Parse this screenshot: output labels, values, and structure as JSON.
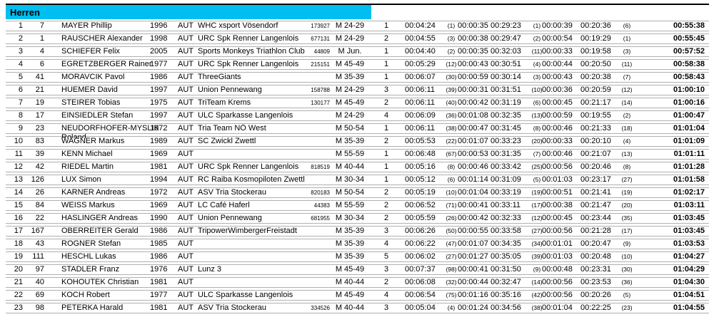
{
  "header": {
    "title": "Herren",
    "accent_color": "#00bff0"
  },
  "table": {
    "rows": [
      {
        "rank": "1",
        "bib": "7",
        "name": "MAYER Phillip",
        "year": "1996",
        "nat": "AUT",
        "club": "WHC xsport Vösendorf",
        "license": "173927",
        "category": "M 24-29",
        "cat_rank": "1",
        "swim": "00:04:24",
        "swim_rank": "(1)",
        "t1": "00:00:35",
        "bike": "00:29:23",
        "bike_rank": "(1)",
        "t2": "00:00:39",
        "run": "00:20:36",
        "run_rank": "(6)",
        "total": "00:55:38"
      },
      {
        "rank": "2",
        "bib": "1",
        "name": "RAUSCHER Alexander",
        "year": "1998",
        "nat": "AUT",
        "club": "URC Spk Renner Langenlois",
        "license": "677131",
        "category": "M 24-29",
        "cat_rank": "2",
        "swim": "00:04:55",
        "swim_rank": "(3)",
        "t1": "00:00:38",
        "bike": "00:29:47",
        "bike_rank": "(2)",
        "t2": "00:00:54",
        "run": "00:19:29",
        "run_rank": "(1)",
        "total": "00:55:45"
      },
      {
        "rank": "3",
        "bib": "4",
        "name": "SCHIEFER Felix",
        "year": "2005",
        "nat": "AUT",
        "club": "Sports Monkeys Triathlon Club",
        "license": "44809",
        "category": "M Jun.",
        "cat_rank": "1",
        "swim": "00:04:40",
        "swim_rank": "(2)",
        "t1": "00:00:35",
        "bike": "00:32:03",
        "bike_rank": "(11)",
        "t2": "00:00:33",
        "run": "00:19:58",
        "run_rank": "(3)",
        "total": "00:57:52"
      },
      {
        "rank": "4",
        "bib": "6",
        "name": "EGRETZBERGER Rainer",
        "year": "1977",
        "nat": "AUT",
        "club": "URC Spk Renner Langenlois",
        "license": "215151",
        "category": "M 45-49",
        "cat_rank": "1",
        "swim": "00:05:29",
        "swim_rank": "(12)",
        "t1": "00:00:43",
        "bike": "00:30:51",
        "bike_rank": "(4)",
        "t2": "00:00:44",
        "run": "00:20:50",
        "run_rank": "(11)",
        "total": "00:58:38"
      },
      {
        "rank": "5",
        "bib": "41",
        "name": "MORAVCIK Pavol",
        "year": "1986",
        "nat": "AUT",
        "club": "ThreeGiants",
        "license": "",
        "category": "M 35-39",
        "cat_rank": "1",
        "swim": "00:06:07",
        "swim_rank": "(30)",
        "t1": "00:00:59",
        "bike": "00:30:14",
        "bike_rank": "(3)",
        "t2": "00:00:43",
        "run": "00:20:38",
        "run_rank": "(7)",
        "total": "00:58:43"
      },
      {
        "rank": "6",
        "bib": "21",
        "name": "HUEMER David",
        "year": "1997",
        "nat": "AUT",
        "club": "Union Pennewang",
        "license": "158788",
        "category": "M 24-29",
        "cat_rank": "3",
        "swim": "00:06:11",
        "swim_rank": "(39)",
        "t1": "00:00:31",
        "bike": "00:31:51",
        "bike_rank": "(10)",
        "t2": "00:00:36",
        "run": "00:20:59",
        "run_rank": "(12)",
        "total": "01:00:10"
      },
      {
        "rank": "7",
        "bib": "19",
        "name": "STEIRER Tobias",
        "year": "1975",
        "nat": "AUT",
        "club": "TriTeam Krems",
        "license": "130177",
        "category": "M 45-49",
        "cat_rank": "2",
        "swim": "00:06:11",
        "swim_rank": "(40)",
        "t1": "00:00:42",
        "bike": "00:31:19",
        "bike_rank": "(6)",
        "t2": "00:00:45",
        "run": "00:21:17",
        "run_rank": "(14)",
        "total": "01:00:16"
      },
      {
        "rank": "8",
        "bib": "17",
        "name": "EINSIEDLER Stefan",
        "year": "1997",
        "nat": "AUT",
        "club": "ULC Sparkasse Langenlois",
        "license": "",
        "category": "M 24-29",
        "cat_rank": "4",
        "swim": "00:06:09",
        "swim_rank": "(36)",
        "t1": "00:01:08",
        "bike": "00:32:35",
        "bike_rank": "(13)",
        "t2": "00:00:59",
        "run": "00:19:55",
        "run_rank": "(2)",
        "total": "01:00:47"
      },
      {
        "rank": "9",
        "bib": "23",
        "name": "NEUDORFHOFER‑MYSLIK Roland",
        "year": "1972",
        "nat": "AUT",
        "club": "Tria Team NÖ West",
        "license": "",
        "category": "M 50-54",
        "cat_rank": "1",
        "swim": "00:06:11",
        "swim_rank": "(38)",
        "t1": "00:00:47",
        "bike": "00:31:45",
        "bike_rank": "(8)",
        "t2": "00:00:46",
        "run": "00:21:33",
        "run_rank": "(18)",
        "total": "01:01:04"
      },
      {
        "rank": "10",
        "bib": "83",
        "name": "WAGNER Markus",
        "year": "1989",
        "nat": "AUT",
        "club": "SC Zwickl Zwettl",
        "license": "",
        "category": "M 35-39",
        "cat_rank": "2",
        "swim": "00:05:53",
        "swim_rank": "(22)",
        "t1": "00:01:07",
        "bike": "00:33:23",
        "bike_rank": "(20)",
        "t2": "00:00:33",
        "run": "00:20:10",
        "run_rank": "(4)",
        "total": "01:01:09"
      },
      {
        "rank": "11",
        "bib": "39",
        "name": "KENN Michael",
        "year": "1969",
        "nat": "AUT",
        "club": "",
        "license": "",
        "category": "M 55-59",
        "cat_rank": "1",
        "swim": "00:06:48",
        "swim_rank": "(67)",
        "t1": "00:00:53",
        "bike": "00:31:35",
        "bike_rank": "(7)",
        "t2": "00:00:46",
        "run": "00:21:07",
        "run_rank": "(13)",
        "total": "01:01:11"
      },
      {
        "rank": "12",
        "bib": "42",
        "name": "RIEDEL Martin",
        "year": "1981",
        "nat": "AUT",
        "club": "URC Spk Renner Langenlois",
        "license": "818519",
        "category": "M 40-44",
        "cat_rank": "1",
        "swim": "00:05:16",
        "swim_rank": "(8)",
        "t1": "00:00:46",
        "bike": "00:33:42",
        "bike_rank": "(25)",
        "t2": "00:00:56",
        "run": "00:20:46",
        "run_rank": "(8)",
        "total": "01:01:28"
      },
      {
        "rank": "13",
        "bib": "126",
        "name": "LUX Simon",
        "year": "1994",
        "nat": "AUT",
        "club": "RC Raiba Kosmopiloten Zwettl",
        "license": "",
        "category": "M 30-34",
        "cat_rank": "1",
        "swim": "00:05:12",
        "swim_rank": "(6)",
        "t1": "00:01:14",
        "bike": "00:31:09",
        "bike_rank": "(5)",
        "t2": "00:01:03",
        "run": "00:23:17",
        "run_rank": "(27)",
        "total": "01:01:58"
      },
      {
        "rank": "14",
        "bib": "26",
        "name": "KARNER Andreas",
        "year": "1972",
        "nat": "AUT",
        "club": "ASV Tria Stockerau",
        "license": "820183",
        "category": "M 50-54",
        "cat_rank": "2",
        "swim": "00:05:19",
        "swim_rank": "(10)",
        "t1": "00:01:04",
        "bike": "00:33:19",
        "bike_rank": "(19)",
        "t2": "00:00:51",
        "run": "00:21:41",
        "run_rank": "(19)",
        "total": "01:02:17"
      },
      {
        "rank": "15",
        "bib": "84",
        "name": "WEISS Markus",
        "year": "1969",
        "nat": "AUT",
        "club": "LC Café Haferl",
        "license": "44383",
        "category": "M 55-59",
        "cat_rank": "2",
        "swim": "00:06:52",
        "swim_rank": "(71)",
        "t1": "00:00:41",
        "bike": "00:33:11",
        "bike_rank": "(17)",
        "t2": "00:00:38",
        "run": "00:21:47",
        "run_rank": "(20)",
        "total": "01:03:11"
      },
      {
        "rank": "16",
        "bib": "22",
        "name": "HASLINGER Andreas",
        "year": "1990",
        "nat": "AUT",
        "club": "Union Pennewang",
        "license": "681955",
        "category": "M 30-34",
        "cat_rank": "2",
        "swim": "00:05:59",
        "swim_rank": "(26)",
        "t1": "00:00:42",
        "bike": "00:32:33",
        "bike_rank": "(12)",
        "t2": "00:00:45",
        "run": "00:23:44",
        "run_rank": "(35)",
        "total": "01:03:45"
      },
      {
        "rank": "17",
        "bib": "167",
        "name": "OBERREITER Gerald",
        "year": "1986",
        "nat": "AUT",
        "club": "TripowerWimbergerFreistadt",
        "license": "",
        "category": "M 35-39",
        "cat_rank": "3",
        "swim": "00:06:26",
        "swim_rank": "(50)",
        "t1": "00:00:55",
        "bike": "00:33:58",
        "bike_rank": "(27)",
        "t2": "00:00:56",
        "run": "00:21:28",
        "run_rank": "(17)",
        "total": "01:03:45"
      },
      {
        "rank": "18",
        "bib": "43",
        "name": "ROGNER Stefan",
        "year": "1985",
        "nat": "AUT",
        "club": "",
        "license": "",
        "category": "M 35-39",
        "cat_rank": "4",
        "swim": "00:06:22",
        "swim_rank": "(47)",
        "t1": "00:01:07",
        "bike": "00:34:35",
        "bike_rank": "(34)",
        "t2": "00:01:01",
        "run": "00:20:47",
        "run_rank": "(9)",
        "total": "01:03:53"
      },
      {
        "rank": "19",
        "bib": "111",
        "name": "HESCHL Lukas",
        "year": "1986",
        "nat": "AUT",
        "club": "",
        "license": "",
        "category": "M 35-39",
        "cat_rank": "5",
        "swim": "00:06:02",
        "swim_rank": "(27)",
        "t1": "00:01:27",
        "bike": "00:35:05",
        "bike_rank": "(39)",
        "t2": "00:01:03",
        "run": "00:20:48",
        "run_rank": "(10)",
        "total": "01:04:27"
      },
      {
        "rank": "20",
        "bib": "97",
        "name": "STADLER Franz",
        "year": "1976",
        "nat": "AUT",
        "club": "Lunz 3",
        "license": "",
        "category": "M 45-49",
        "cat_rank": "3",
        "swim": "00:07:37",
        "swim_rank": "(98)",
        "t1": "00:00:41",
        "bike": "00:31:50",
        "bike_rank": "(9)",
        "t2": "00:00:48",
        "run": "00:23:31",
        "run_rank": "(30)",
        "total": "01:04:29"
      },
      {
        "rank": "21",
        "bib": "40",
        "name": "KOHOUTEK Christian",
        "year": "1981",
        "nat": "AUT",
        "club": "",
        "license": "",
        "category": "M 40-44",
        "cat_rank": "2",
        "swim": "00:06:08",
        "swim_rank": "(32)",
        "t1": "00:00:44",
        "bike": "00:32:47",
        "bike_rank": "(14)",
        "t2": "00:00:56",
        "run": "00:23:53",
        "run_rank": "(36)",
        "total": "01:04:30"
      },
      {
        "rank": "22",
        "bib": "69",
        "name": "KOCH Robert",
        "year": "1977",
        "nat": "AUT",
        "club": "ULC Sparkasse Langenlois",
        "license": "",
        "category": "M 45-49",
        "cat_rank": "4",
        "swim": "00:06:54",
        "swim_rank": "(75)",
        "t1": "00:01:16",
        "bike": "00:35:16",
        "bike_rank": "(42)",
        "t2": "00:00:56",
        "run": "00:20:26",
        "run_rank": "(5)",
        "total": "01:04:51"
      },
      {
        "rank": "23",
        "bib": "98",
        "name": "PETERKA Harald",
        "year": "1981",
        "nat": "AUT",
        "club": "ASV Tria Stockerau",
        "license": "334526",
        "category": "M 40-44",
        "cat_rank": "3",
        "swim": "00:05:04",
        "swim_rank": "(4)",
        "t1": "00:01:24",
        "bike": "00:34:56",
        "bike_rank": "(38)",
        "t2": "00:01:04",
        "run": "00:22:25",
        "run_rank": "(23)",
        "total": "01:04:55"
      }
    ]
  }
}
